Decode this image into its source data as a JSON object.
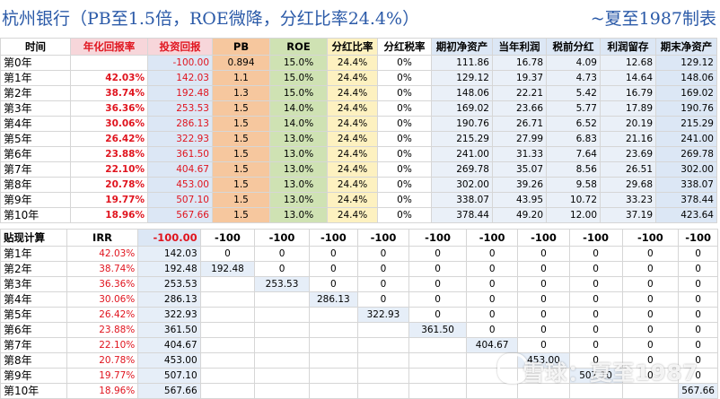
{
  "title": "杭州银行（PB至1.5倍，ROE微降，分红比率24.4%）",
  "credit": "~夏至1987制表",
  "table1": {
    "headers": [
      "时间",
      "年化回报率",
      "投资回报",
      "PB",
      "ROE",
      "分红比率",
      "分红税率",
      "期初净资产",
      "当年利润",
      "税前分红",
      "利润留存",
      "期末净资产"
    ],
    "rows": [
      [
        "第0年",
        "",
        "-100.00",
        "0.894",
        "15.0%",
        "24.4%",
        "0%",
        "111.86",
        "16.78",
        "4.09",
        "12.68",
        "129.12"
      ],
      [
        "第1年",
        "42.03%",
        "142.03",
        "1.1",
        "15.0%",
        "24.4%",
        "0%",
        "129.12",
        "19.37",
        "4.73",
        "14.64",
        "148.06"
      ],
      [
        "第2年",
        "38.74%",
        "192.48",
        "1.3",
        "15.0%",
        "24.4%",
        "0%",
        "148.06",
        "22.21",
        "5.42",
        "16.79",
        "169.02"
      ],
      [
        "第3年",
        "36.36%",
        "253.53",
        "1.5",
        "14.0%",
        "24.4%",
        "0%",
        "169.02",
        "23.66",
        "5.77",
        "17.89",
        "190.76"
      ],
      [
        "第4年",
        "30.06%",
        "286.13",
        "1.5",
        "14.0%",
        "24.4%",
        "0%",
        "190.76",
        "26.71",
        "6.52",
        "20.19",
        "215.29"
      ],
      [
        "第5年",
        "26.42%",
        "322.93",
        "1.5",
        "13.0%",
        "24.4%",
        "0%",
        "215.29",
        "27.99",
        "6.83",
        "21.16",
        "241.00"
      ],
      [
        "第6年",
        "23.88%",
        "361.50",
        "1.5",
        "13.0%",
        "24.4%",
        "0%",
        "241.00",
        "31.33",
        "7.64",
        "23.69",
        "269.78"
      ],
      [
        "第7年",
        "22.10%",
        "404.67",
        "1.5",
        "13.0%",
        "24.4%",
        "0%",
        "269.78",
        "35.07",
        "8.56",
        "26.51",
        "302.00"
      ],
      [
        "第8年",
        "20.78%",
        "453.00",
        "1.5",
        "13.0%",
        "24.4%",
        "0%",
        "302.00",
        "39.26",
        "9.58",
        "29.68",
        "338.07"
      ],
      [
        "第9年",
        "19.77%",
        "507.10",
        "1.5",
        "13.0%",
        "24.4%",
        "0%",
        "338.07",
        "43.95",
        "10.72",
        "33.23",
        "378.44"
      ],
      [
        "第10年",
        "18.96%",
        "567.66",
        "1.5",
        "13.0%",
        "24.4%",
        "0%",
        "378.44",
        "49.20",
        "12.00",
        "37.19",
        "423.64"
      ]
    ]
  },
  "table2": {
    "header_label": "贴现计算",
    "header_irr": "IRR",
    "header_values": [
      "-100.00",
      "-100",
      "-100",
      "-100",
      "-100",
      "-100",
      "-100",
      "-100",
      "-100",
      "-100",
      "-100"
    ],
    "rows": [
      {
        "label": "第1年",
        "irr": "42.03%",
        "value": "142.03",
        "cells": [
          "0",
          "0",
          "0",
          "0",
          "0",
          "0",
          "0",
          "0",
          "0",
          "0"
        ]
      },
      {
        "label": "第2年",
        "irr": "38.74%",
        "value": "192.48",
        "cells": [
          "192.48",
          "0",
          "0",
          "0",
          "0",
          "0",
          "0",
          "0",
          "0",
          "0"
        ]
      },
      {
        "label": "第3年",
        "irr": "36.36%",
        "value": "253.53",
        "cells": [
          "",
          "253.53",
          "0",
          "0",
          "0",
          "0",
          "0",
          "0",
          "0",
          "0"
        ]
      },
      {
        "label": "第4年",
        "irr": "30.06%",
        "value": "286.13",
        "cells": [
          "",
          "",
          "286.13",
          "0",
          "0",
          "0",
          "0",
          "0",
          "0",
          "0"
        ]
      },
      {
        "label": "第5年",
        "irr": "26.42%",
        "value": "322.93",
        "cells": [
          "",
          "",
          "",
          "322.93",
          "0",
          "0",
          "0",
          "0",
          "0",
          "0"
        ]
      },
      {
        "label": "第6年",
        "irr": "23.88%",
        "value": "361.50",
        "cells": [
          "",
          "",
          "",
          "",
          "361.50",
          "0",
          "0",
          "0",
          "0",
          "0"
        ]
      },
      {
        "label": "第7年",
        "irr": "22.10%",
        "value": "404.67",
        "cells": [
          "",
          "",
          "",
          "",
          "",
          "404.67",
          "0",
          "0",
          "0",
          "0"
        ]
      },
      {
        "label": "第8年",
        "irr": "20.78%",
        "value": "453.00",
        "cells": [
          "",
          "",
          "",
          "",
          "",
          "",
          "453.00",
          "0",
          "0",
          "0"
        ]
      },
      {
        "label": "第9年",
        "irr": "19.77%",
        "value": "507.10",
        "cells": [
          "",
          "",
          "",
          "",
          "",
          "",
          "",
          "507.10",
          "0",
          "0"
        ]
      },
      {
        "label": "第10年",
        "irr": "18.96%",
        "value": "567.66",
        "cells": [
          "",
          "",
          "",
          "",
          "",
          "",
          "",
          "",
          "",
          "567.66"
        ]
      }
    ]
  },
  "watermark": "雪球：夏至1987",
  "colors": {
    "title": "#2b5aa8",
    "red": "#e0141e",
    "pb": "#f6c79e",
    "roe": "#cfe2b3",
    "div": "#fdf1c0",
    "blue": "#dce7f5"
  }
}
